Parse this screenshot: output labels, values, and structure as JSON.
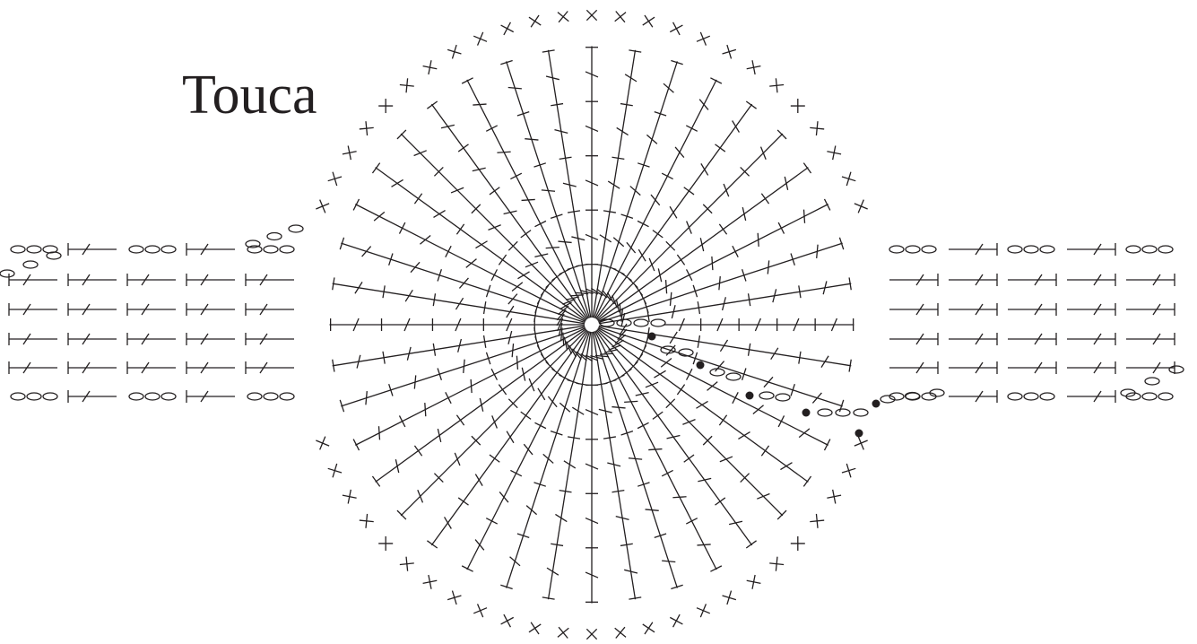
{
  "header": {
    "title": "Touca"
  }
}
